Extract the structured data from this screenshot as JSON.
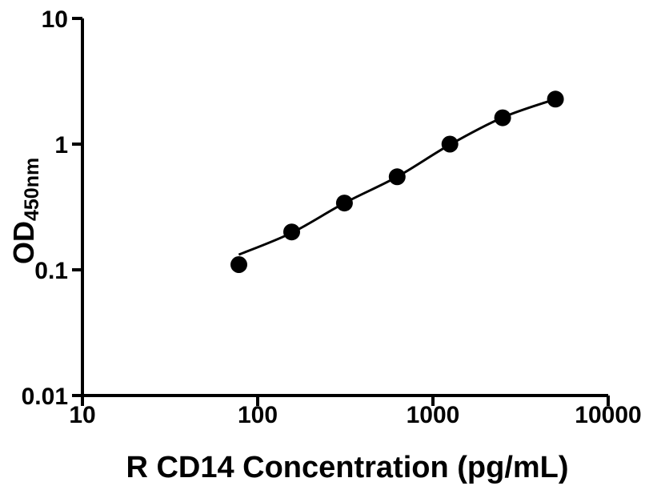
{
  "figure": {
    "background_color": "#ffffff",
    "ink_color": "#000000"
  },
  "chart_data": {
    "type": "scatter",
    "title": "",
    "xlabel": "R CD14 Concentration (pg/mL)",
    "ylabel": "OD450nm",
    "ylabel_main": "OD",
    "ylabel_sub": "450nm",
    "x_scale": "log10",
    "y_scale": "log10",
    "xlim": [
      10,
      10000
    ],
    "ylim": [
      0.01,
      10
    ],
    "grid": false,
    "legend": false,
    "x_ticks": [
      {
        "value": 10,
        "label": "10"
      },
      {
        "value": 100,
        "label": "100"
      },
      {
        "value": 1000,
        "label": "1000"
      },
      {
        "value": 10000,
        "label": "10000"
      }
    ],
    "y_ticks": [
      {
        "value": 0.01,
        "label": "0.01"
      },
      {
        "value": 0.1,
        "label": "0.1"
      },
      {
        "value": 1,
        "label": "1"
      },
      {
        "value": 10,
        "label": "10"
      }
    ],
    "series": [
      {
        "name": "R CD14 standard curve points",
        "marker": "filled-circle",
        "marker_color": "#000000",
        "x": [
          78.1,
          156.3,
          312.5,
          625,
          1250,
          2500,
          5000
        ],
        "y": [
          0.11,
          0.2,
          0.34,
          0.55,
          1.0,
          1.62,
          2.28
        ]
      }
    ],
    "fit_curve": {
      "name": "fitted curve",
      "color": "#000000",
      "x": [
        78,
        156.3,
        312.5,
        625,
        1250,
        2500,
        5000
      ],
      "y": [
        0.132,
        0.197,
        0.34,
        0.55,
        0.99,
        1.63,
        2.28
      ]
    }
  }
}
